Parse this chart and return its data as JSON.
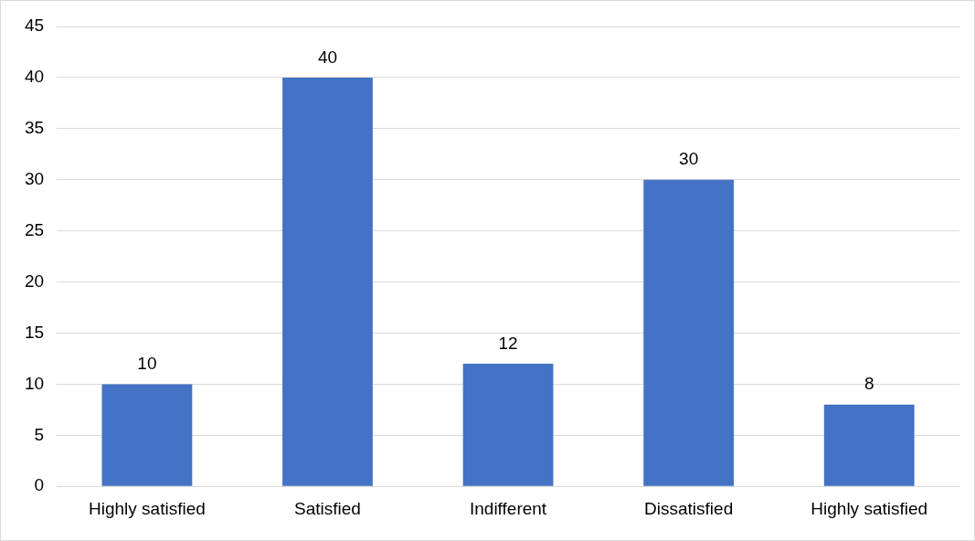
{
  "chart_data": {
    "type": "bar",
    "categories": [
      "Highly satisfied",
      "Satisfied",
      "Indifferent",
      "Dissatisfied",
      "Highly satisfied"
    ],
    "values": [
      10,
      40,
      12,
      30,
      8
    ],
    "color": "#4472c4",
    "ylim": [
      0,
      45
    ],
    "yticks": [
      0,
      5,
      10,
      15,
      20,
      25,
      30,
      35,
      40,
      45
    ],
    "grid": "y",
    "data_labels": true
  }
}
